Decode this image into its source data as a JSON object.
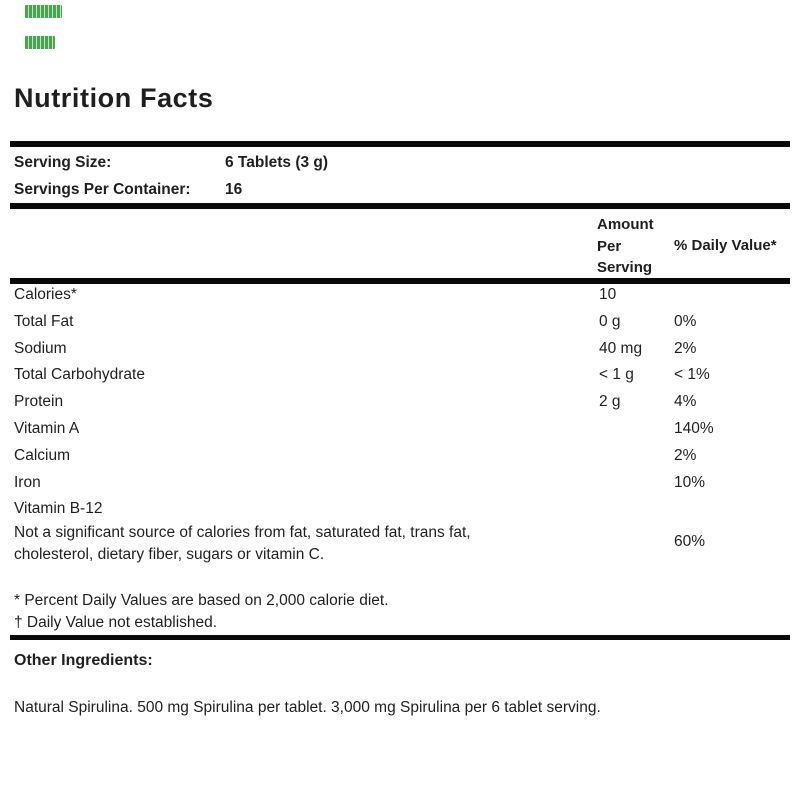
{
  "title": "Nutrition Facts",
  "serving_info": {
    "rows": [
      {
        "label": "Serving Size:",
        "value": "6 Tablets (3 g)"
      },
      {
        "label": "Servings Per Container:",
        "value": "16"
      }
    ]
  },
  "table": {
    "headers": {
      "amount": "Amount Per Serving",
      "daily_value": "% Daily Value*"
    },
    "rows": [
      {
        "name": "Calories*",
        "amount": "10",
        "dv": ""
      },
      {
        "name": "Total Fat",
        "amount": "0 g",
        "dv": "0%"
      },
      {
        "name": "Sodium",
        "amount": "40 mg",
        "dv": "2%"
      },
      {
        "name": "Total Carbohydrate",
        "amount": "< 1 g",
        "dv": "< 1%"
      },
      {
        "name": "Protein",
        "amount": "2 g",
        "dv": "4%"
      },
      {
        "name": "Vitamin A",
        "amount": "",
        "dv": "140%"
      },
      {
        "name": "Calcium",
        "amount": "",
        "dv": "2%"
      },
      {
        "name": "Iron",
        "amount": "",
        "dv": "10%"
      },
      {
        "name": "Vitamin B-12",
        "amount": "",
        "dv": ""
      }
    ],
    "note": {
      "text": "Not a significant source of calories from fat, saturated fat, trans fat, cholesterol, dietary fiber, sugars or vitamin C.",
      "dv": "60%"
    }
  },
  "footnotes": [
    "* Percent Daily Values are based on 2,000 calorie diet.",
    "† Daily Value not established."
  ],
  "other_ingredients": {
    "heading": "Other Ingredients:",
    "text": "Natural Spirulina. 500 mg Spirulina per tablet. 3,000 mg Spirulina per 6 tablet serving."
  },
  "colors": {
    "text": "#1f1f1f",
    "rule": "#0a0a0a",
    "background": "#ffffff",
    "green_mark": "#3da144"
  }
}
